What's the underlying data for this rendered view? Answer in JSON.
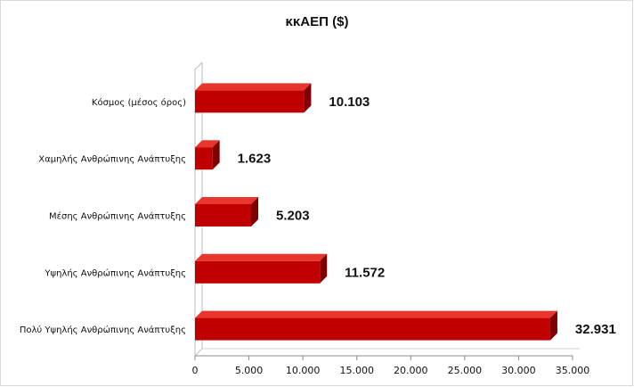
{
  "chart_data": {
    "type": "bar",
    "orientation": "horizontal",
    "title": "κκΑΕΠ ($)",
    "categories": [
      "Κόσμος (μέσος όρος)",
      "Χαμηλής Ανθρώπινης Ανάπτυξης",
      "Μέσης Ανθρώπινης Ανάπτυξης",
      "Υψηλής Ανθρώπινης Ανάπτυξης",
      "Πολύ Υψηλής Ανθρώπινης Ανάπτυξης"
    ],
    "values": [
      10103,
      1623,
      5203,
      11572,
      32931
    ],
    "value_labels": [
      "10.103",
      "1.623",
      "5.203",
      "11.572",
      "32.931"
    ],
    "xlim": [
      0,
      35000
    ],
    "x_ticks": [
      0,
      5000,
      10000,
      15000,
      20000,
      25000,
      30000,
      35000
    ],
    "x_tick_labels": [
      "0",
      "5.000",
      "10.000",
      "15.000",
      "20.000",
      "25.000",
      "30.000",
      "35.000"
    ],
    "bar_color": "#c00000",
    "style": "3d",
    "grid": false,
    "legend": "none"
  }
}
